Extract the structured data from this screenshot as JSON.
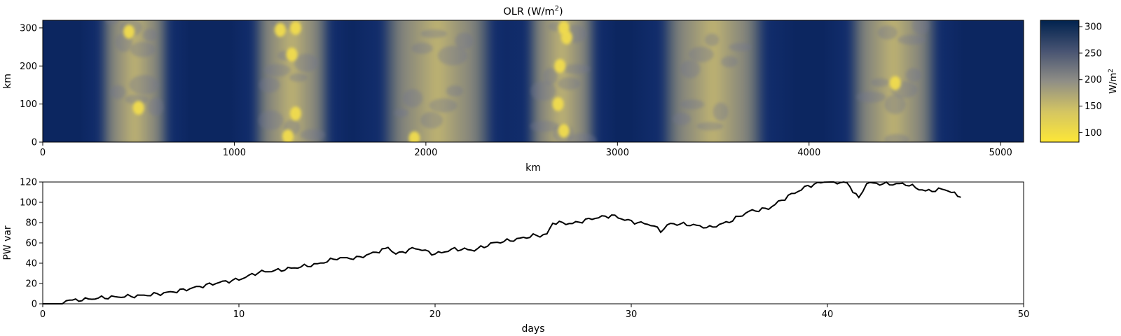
{
  "chart_data": [
    {
      "type": "heatmap",
      "title": "OLR (W/m",
      "title_sup": "2",
      "title_end": ")",
      "xlabel": "km",
      "ylabel": "km",
      "xlim": [
        0,
        5120
      ],
      "ylim": [
        0,
        320
      ],
      "xticks": [
        0,
        1000,
        2000,
        3000,
        4000,
        5000
      ],
      "yticks": [
        0,
        100,
        200,
        300
      ],
      "colormap": "cividis_r",
      "colorbar": {
        "label": "W/m",
        "label_sup": "2",
        "range": [
          82,
          312
        ],
        "ticks": [
          100,
          150,
          200,
          250,
          300
        ],
        "low_color": "#fde737",
        "mid_color": "#7c7b78",
        "high_color": "#00224e"
      },
      "convective_bands_km": [
        {
          "center": 480,
          "half_width": 180
        },
        {
          "center": 1300,
          "half_width": 200
        },
        {
          "center": 2060,
          "half_width": 290
        },
        {
          "center": 2710,
          "half_width": 180
        },
        {
          "center": 3500,
          "half_width": 270
        },
        {
          "center": 4440,
          "half_width": 230
        }
      ],
      "bright_cells_km": [
        {
          "x": 450,
          "y": 290
        },
        {
          "x": 500,
          "y": 90
        },
        {
          "x": 1240,
          "y": 295
        },
        {
          "x": 1320,
          "y": 300
        },
        {
          "x": 1300,
          "y": 230
        },
        {
          "x": 1320,
          "y": 75
        },
        {
          "x": 1280,
          "y": 15
        },
        {
          "x": 1940,
          "y": 10
        },
        {
          "x": 2720,
          "y": 300
        },
        {
          "x": 2735,
          "y": 275
        },
        {
          "x": 2700,
          "y": 200
        },
        {
          "x": 2690,
          "y": 100
        },
        {
          "x": 2720,
          "y": 30
        },
        {
          "x": 4450,
          "y": 155
        }
      ]
    },
    {
      "type": "line",
      "title": "",
      "xlabel": "days",
      "ylabel": "PW var",
      "xlim": [
        0,
        50
      ],
      "ylim": [
        0,
        120
      ],
      "xticks": [
        0,
        10,
        20,
        30,
        40,
        50
      ],
      "yticks": [
        0,
        20,
        40,
        60,
        80,
        100,
        120
      ],
      "line_color": "#000000",
      "x": [
        0,
        1,
        1.2,
        2,
        3,
        4,
        5,
        6,
        7,
        8,
        9,
        10,
        11,
        12,
        13,
        14,
        15,
        16,
        17,
        17.6,
        18,
        19,
        20,
        21,
        22,
        23,
        24,
        25,
        25.7,
        26,
        27,
        28,
        29,
        30,
        31,
        31.5,
        32,
        33,
        34,
        35,
        36,
        37,
        38,
        39,
        40,
        41,
        41.6,
        42,
        43,
        44,
        45,
        46,
        46.8
      ],
      "y": [
        0,
        0,
        3,
        4,
        6,
        7,
        8,
        10,
        13,
        17,
        21,
        24,
        31,
        33,
        36,
        39,
        45,
        45,
        51,
        55,
        49,
        55,
        49,
        54,
        53,
        60,
        63,
        67,
        68,
        80,
        79,
        84,
        87,
        81,
        78,
        72,
        79,
        78,
        75,
        81,
        91,
        94,
        106,
        116,
        121,
        119,
        104,
        119,
        118,
        118,
        111,
        113,
        105
      ]
    }
  ]
}
